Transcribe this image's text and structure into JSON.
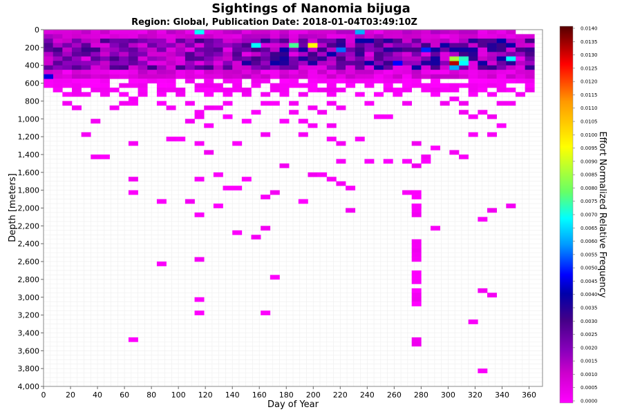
{
  "chart_data": {
    "type": "heatmap",
    "title": "Sightings of Nanomia bijuga",
    "subtitle": "Region: Global, Publication Date: 2018-01-04T03:49:10Z",
    "xlabel": "Day of Year",
    "ylabel": "Depth [meters]",
    "colorbar_label": "Effort Normalized Relative Frequency",
    "xlim": [
      0,
      370
    ],
    "ylim": [
      0,
      4000
    ],
    "y_inverted": true,
    "x_ticks": [
      "0",
      "20",
      "40",
      "60",
      "80",
      "100",
      "120",
      "140",
      "160",
      "180",
      "200",
      "220",
      "240",
      "260",
      "280",
      "300",
      "320",
      "340",
      "360"
    ],
    "y_ticks": [
      "0",
      "200",
      "400",
      "600",
      "800",
      "1,000",
      "1,200",
      "1,400",
      "1,600",
      "1,800",
      "2,000",
      "2,200",
      "2,400",
      "2,600",
      "2,800",
      "3,000",
      "3,200",
      "3,400",
      "3,600",
      "3,800",
      "4,000"
    ],
    "colorbar_ticks": [
      "0.0000",
      "0.0005",
      "0.0010",
      "0.0015",
      "0.0020",
      "0.0025",
      "0.0030",
      "0.0035",
      "0.0040",
      "0.0045",
      "0.0050",
      "0.0055",
      "0.0060",
      "0.0065",
      "0.0070",
      "0.0075",
      "0.0080",
      "0.0085",
      "0.0090",
      "0.0095",
      "0.0100",
      "0.0105",
      "0.0110",
      "0.0115",
      "0.0120",
      "0.0125",
      "0.0130",
      "0.0135",
      "0.0140"
    ],
    "colorbar_range": [
      0,
      0.014
    ],
    "colorbar_colors": [
      "#ff00ff",
      "#cc00cc",
      "#8800bb",
      "#440088",
      "#0000aa",
      "#0000ff",
      "#0099ff",
      "#00ffff",
      "#66ff66",
      "#ffff00",
      "#ff9900",
      "#ff0000",
      "#990000",
      "#550000"
    ],
    "grid": true,
    "bin_x": 7,
    "bin_y": 50,
    "cells": [
      {
        "x": "0-364",
        "y": "0-700",
        "value": "0.0003-0.0042 (dense upper band)"
      },
      {
        "x": "273-280",
        "y": "700-3500",
        "value": "0.0002"
      },
      {
        "x": "301-308",
        "y": "350-400",
        "value": 0.0132
      },
      {
        "x": "301-308",
        "y": "300-350",
        "value": 0.0085
      },
      {
        "x": "196-203",
        "y": "150-200",
        "value": 0.0095
      },
      {
        "x": "182-189",
        "y": "150-200",
        "value": 0.0075
      },
      {
        "x": "154-161",
        "y": "150-200",
        "value": 0.0068
      },
      {
        "x": "343-350",
        "y": "300-350",
        "value": 0.0068
      }
    ]
  }
}
